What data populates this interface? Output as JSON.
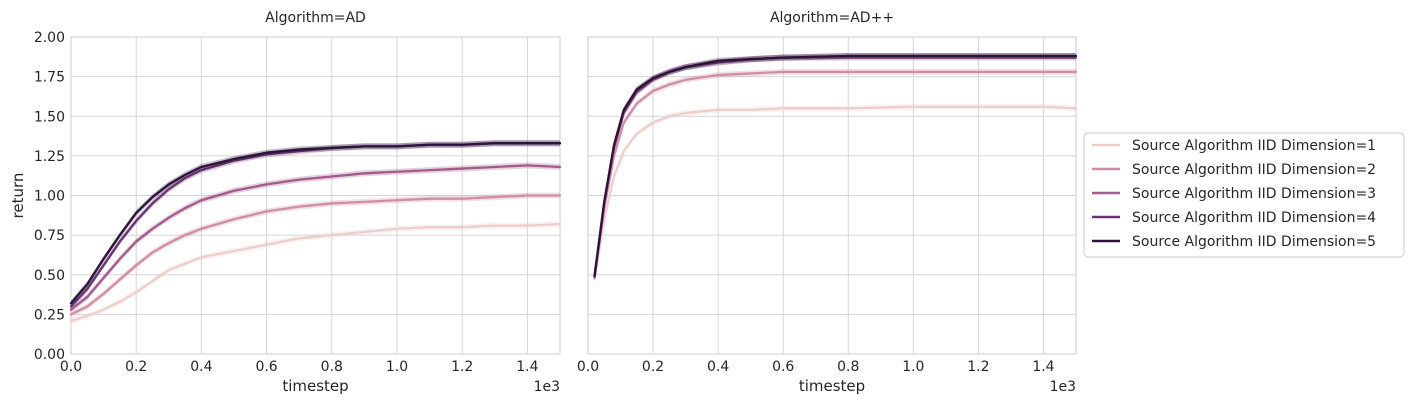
{
  "chart_data": {
    "type": "line",
    "xlabel": "timestep",
    "ylabel": "return",
    "x_scale_label": "1e3",
    "xlim": [
      0.0,
      1.5
    ],
    "ylim": [
      0.0,
      2.0
    ],
    "x_ticks": [
      "0.0",
      "0.2",
      "0.4",
      "0.6",
      "0.8",
      "1.0",
      "1.2",
      "1.4"
    ],
    "y_ticks": [
      "0.00",
      "0.25",
      "0.50",
      "0.75",
      "1.00",
      "1.25",
      "1.50",
      "1.75",
      "2.00"
    ],
    "grid": true,
    "legend_placement": "right",
    "legend": [
      {
        "name": "Source Algorithm IID Dimension=1",
        "color": "#eccfcc"
      },
      {
        "name": "Source Algorithm IID Dimension=2",
        "color": "#cf8ea5"
      },
      {
        "name": "Source Algorithm IID Dimension=3",
        "color": "#a15c8c"
      },
      {
        "name": "Source Algorithm IID Dimension=4",
        "color": "#6b3573"
      },
      {
        "name": "Source Algorithm IID Dimension=5",
        "color": "#2b1438"
      }
    ],
    "panels": [
      {
        "title": "Algorithm=AD",
        "series": [
          {
            "name": "Source Algorithm IID Dimension=1",
            "x": [
              0.0,
              0.05,
              0.1,
              0.15,
              0.2,
              0.25,
              0.3,
              0.35,
              0.4,
              0.5,
              0.6,
              0.7,
              0.8,
              0.9,
              1.0,
              1.1,
              1.2,
              1.3,
              1.4,
              1.5
            ],
            "y": [
              0.21,
              0.24,
              0.28,
              0.33,
              0.39,
              0.46,
              0.53,
              0.57,
              0.61,
              0.65,
              0.69,
              0.73,
              0.75,
              0.77,
              0.79,
              0.8,
              0.8,
              0.81,
              0.81,
              0.82
            ]
          },
          {
            "name": "Source Algorithm IID Dimension=2",
            "x": [
              0.0,
              0.05,
              0.1,
              0.15,
              0.2,
              0.25,
              0.3,
              0.35,
              0.4,
              0.5,
              0.6,
              0.7,
              0.8,
              0.9,
              1.0,
              1.1,
              1.2,
              1.3,
              1.4,
              1.5
            ],
            "y": [
              0.25,
              0.3,
              0.38,
              0.47,
              0.56,
              0.64,
              0.7,
              0.75,
              0.79,
              0.85,
              0.9,
              0.93,
              0.95,
              0.96,
              0.97,
              0.98,
              0.98,
              0.99,
              1.0,
              1.0
            ]
          },
          {
            "name": "Source Algorithm IID Dimension=3",
            "x": [
              0.0,
              0.05,
              0.1,
              0.15,
              0.2,
              0.25,
              0.3,
              0.35,
              0.4,
              0.5,
              0.6,
              0.7,
              0.8,
              0.9,
              1.0,
              1.1,
              1.2,
              1.3,
              1.4,
              1.5
            ],
            "y": [
              0.28,
              0.36,
              0.48,
              0.6,
              0.71,
              0.79,
              0.86,
              0.92,
              0.97,
              1.03,
              1.07,
              1.1,
              1.12,
              1.14,
              1.15,
              1.16,
              1.17,
              1.18,
              1.19,
              1.18
            ]
          },
          {
            "name": "Source Algorithm IID Dimension=4",
            "x": [
              0.0,
              0.05,
              0.1,
              0.15,
              0.2,
              0.25,
              0.3,
              0.35,
              0.4,
              0.5,
              0.6,
              0.7,
              0.8,
              0.9,
              1.0,
              1.1,
              1.2,
              1.3,
              1.4,
              1.5
            ],
            "y": [
              0.3,
              0.41,
              0.56,
              0.71,
              0.84,
              0.95,
              1.04,
              1.11,
              1.16,
              1.22,
              1.26,
              1.28,
              1.3,
              1.31,
              1.31,
              1.32,
              1.32,
              1.33,
              1.33,
              1.33
            ]
          },
          {
            "name": "Source Algorithm IID Dimension=5",
            "x": [
              0.0,
              0.05,
              0.1,
              0.15,
              0.2,
              0.25,
              0.3,
              0.35,
              0.4,
              0.5,
              0.6,
              0.7,
              0.8,
              0.9,
              1.0,
              1.1,
              1.2,
              1.3,
              1.4,
              1.5
            ],
            "y": [
              0.32,
              0.44,
              0.6,
              0.75,
              0.89,
              0.99,
              1.07,
              1.13,
              1.18,
              1.23,
              1.27,
              1.29,
              1.3,
              1.31,
              1.31,
              1.32,
              1.32,
              1.33,
              1.33,
              1.33
            ]
          }
        ]
      },
      {
        "title": "Algorithm=AD++",
        "series": [
          {
            "name": "Source Algorithm IID Dimension=1",
            "x": [
              0.02,
              0.05,
              0.08,
              0.11,
              0.15,
              0.2,
              0.25,
              0.3,
              0.4,
              0.5,
              0.6,
              0.8,
              1.0,
              1.2,
              1.4,
              1.5
            ],
            "y": [
              0.47,
              0.85,
              1.12,
              1.28,
              1.39,
              1.46,
              1.5,
              1.52,
              1.54,
              1.54,
              1.55,
              1.55,
              1.56,
              1.56,
              1.56,
              1.55
            ]
          },
          {
            "name": "Source Algorithm IID Dimension=2",
            "x": [
              0.02,
              0.05,
              0.08,
              0.11,
              0.15,
              0.2,
              0.25,
              0.3,
              0.4,
              0.5,
              0.6,
              0.8,
              1.0,
              1.2,
              1.4,
              1.5
            ],
            "y": [
              0.48,
              0.92,
              1.25,
              1.46,
              1.58,
              1.66,
              1.7,
              1.73,
              1.76,
              1.77,
              1.78,
              1.78,
              1.78,
              1.78,
              1.78,
              1.78
            ]
          },
          {
            "name": "Source Algorithm IID Dimension=3",
            "x": [
              0.02,
              0.05,
              0.08,
              0.11,
              0.15,
              0.2,
              0.25,
              0.3,
              0.4,
              0.5,
              0.6,
              0.8,
              1.0,
              1.2,
              1.4,
              1.5
            ],
            "y": [
              0.49,
              0.95,
              1.3,
              1.52,
              1.65,
              1.73,
              1.78,
              1.81,
              1.84,
              1.86,
              1.87,
              1.87,
              1.87,
              1.87,
              1.87,
              1.87
            ]
          },
          {
            "name": "Source Algorithm IID Dimension=4",
            "x": [
              0.02,
              0.05,
              0.08,
              0.11,
              0.15,
              0.2,
              0.25,
              0.3,
              0.4,
              0.5,
              0.6,
              0.8,
              1.0,
              1.2,
              1.4,
              1.5
            ],
            "y": [
              0.49,
              0.96,
              1.31,
              1.53,
              1.66,
              1.74,
              1.78,
              1.81,
              1.84,
              1.86,
              1.87,
              1.88,
              1.88,
              1.88,
              1.88,
              1.88
            ]
          },
          {
            "name": "Source Algorithm IID Dimension=5",
            "x": [
              0.02,
              0.05,
              0.08,
              0.11,
              0.15,
              0.2,
              0.25,
              0.3,
              0.4,
              0.5,
              0.6,
              0.8,
              1.0,
              1.2,
              1.4,
              1.5
            ],
            "y": [
              0.49,
              0.96,
              1.32,
              1.54,
              1.67,
              1.74,
              1.78,
              1.81,
              1.85,
              1.86,
              1.87,
              1.88,
              1.88,
              1.88,
              1.88,
              1.88
            ]
          }
        ]
      }
    ]
  }
}
